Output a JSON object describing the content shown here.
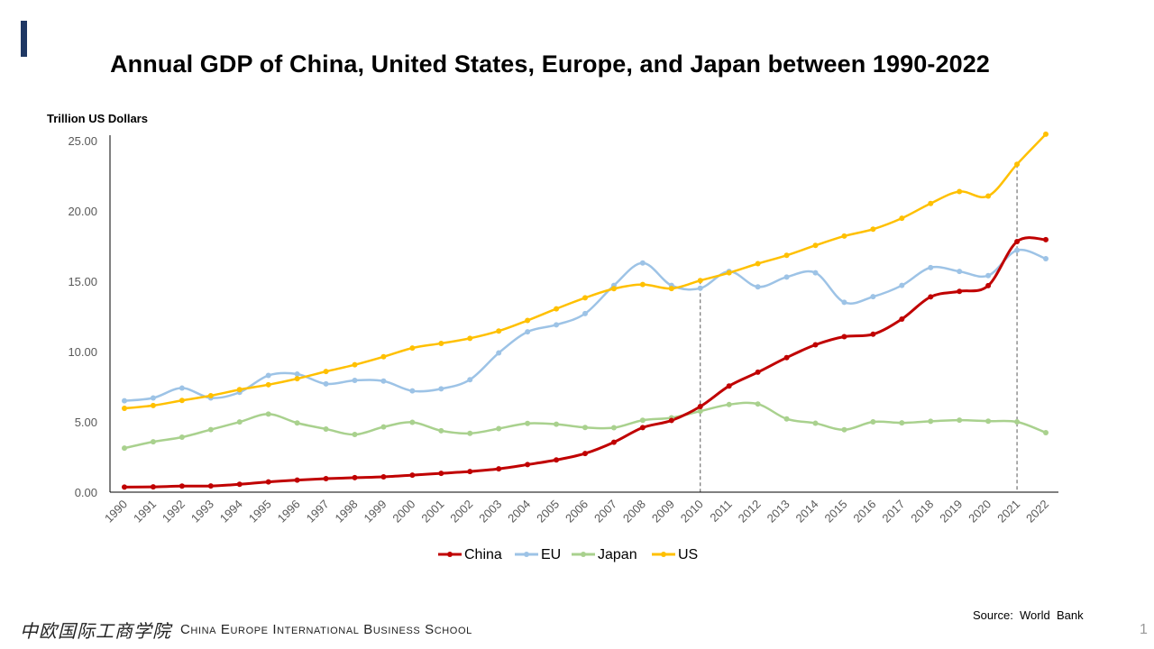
{
  "colors": {
    "accent": "#1f3864",
    "China": "#c00000",
    "EU": "#9dc3e6",
    "Japan": "#a9d18e",
    "US": "#ffc000",
    "axis": "#000000",
    "tick_text": "#595959",
    "dashed": "#595959"
  },
  "chart_data": {
    "type": "line",
    "title": "Annual GDP of China, United States, Europe, and Japan between 1990-2022",
    "ylabel": "Trillion US Dollars",
    "xlabel": "",
    "ylim": [
      0,
      25
    ],
    "yticks": [
      "0.00",
      "5.00",
      "10.00",
      "15.00",
      "20.00",
      "25.00"
    ],
    "ytick_values": [
      0,
      5,
      10,
      15,
      20,
      25
    ],
    "categories": [
      "1990",
      "1991",
      "1992",
      "1993",
      "1994",
      "1995",
      "1996",
      "1997",
      "1998",
      "1999",
      "2000",
      "2001",
      "2002",
      "2003",
      "2004",
      "2005",
      "2006",
      "2007",
      "2008",
      "2009",
      "2010",
      "2011",
      "2012",
      "2013",
      "2014",
      "2015",
      "2016",
      "2017",
      "2018",
      "2019",
      "2020",
      "2021",
      "2022"
    ],
    "legend_position": "bottom",
    "reference_lines": [
      "2010",
      "2021"
    ],
    "series": [
      {
        "name": "China",
        "values": [
          0.36,
          0.38,
          0.43,
          0.44,
          0.56,
          0.73,
          0.86,
          0.96,
          1.03,
          1.09,
          1.21,
          1.34,
          1.47,
          1.66,
          1.96,
          2.29,
          2.75,
          3.55,
          4.59,
          5.1,
          6.09,
          7.55,
          8.53,
          9.57,
          10.48,
          11.06,
          11.23,
          12.31,
          13.89,
          14.28,
          14.69,
          17.82,
          17.96
        ]
      },
      {
        "name": "EU",
        "values": [
          6.5,
          6.7,
          7.4,
          6.7,
          7.1,
          8.3,
          8.4,
          7.7,
          7.95,
          7.9,
          7.2,
          7.35,
          8.0,
          9.9,
          11.4,
          11.9,
          12.7,
          14.7,
          16.3,
          14.7,
          14.5,
          15.7,
          14.6,
          15.3,
          15.6,
          13.5,
          13.9,
          14.7,
          15.97,
          15.7,
          15.4,
          17.2,
          16.6
        ]
      },
      {
        "name": "Japan",
        "values": [
          3.13,
          3.58,
          3.91,
          4.45,
          4.99,
          5.55,
          4.92,
          4.49,
          4.1,
          4.64,
          4.97,
          4.37,
          4.18,
          4.52,
          4.89,
          4.83,
          4.6,
          4.58,
          5.11,
          5.29,
          5.76,
          6.23,
          6.27,
          5.21,
          4.9,
          4.44,
          5.0,
          4.93,
          5.04,
          5.12,
          5.05,
          5.0,
          4.23
        ]
      },
      {
        "name": "US",
        "values": [
          5.96,
          6.16,
          6.52,
          6.86,
          7.29,
          7.64,
          8.07,
          8.58,
          9.06,
          9.63,
          10.25,
          10.58,
          10.94,
          11.46,
          12.21,
          13.04,
          13.82,
          14.47,
          14.77,
          14.48,
          15.05,
          15.6,
          16.25,
          16.84,
          17.55,
          18.21,
          18.7,
          19.48,
          20.53,
          21.38,
          21.06,
          23.32,
          25.46
        ]
      }
    ]
  },
  "footer": {
    "source": "Source:  World  Bank",
    "page_number": "1",
    "logo_cn": "中欧国际工商学院",
    "logo_en": "China Europe International Business School"
  }
}
